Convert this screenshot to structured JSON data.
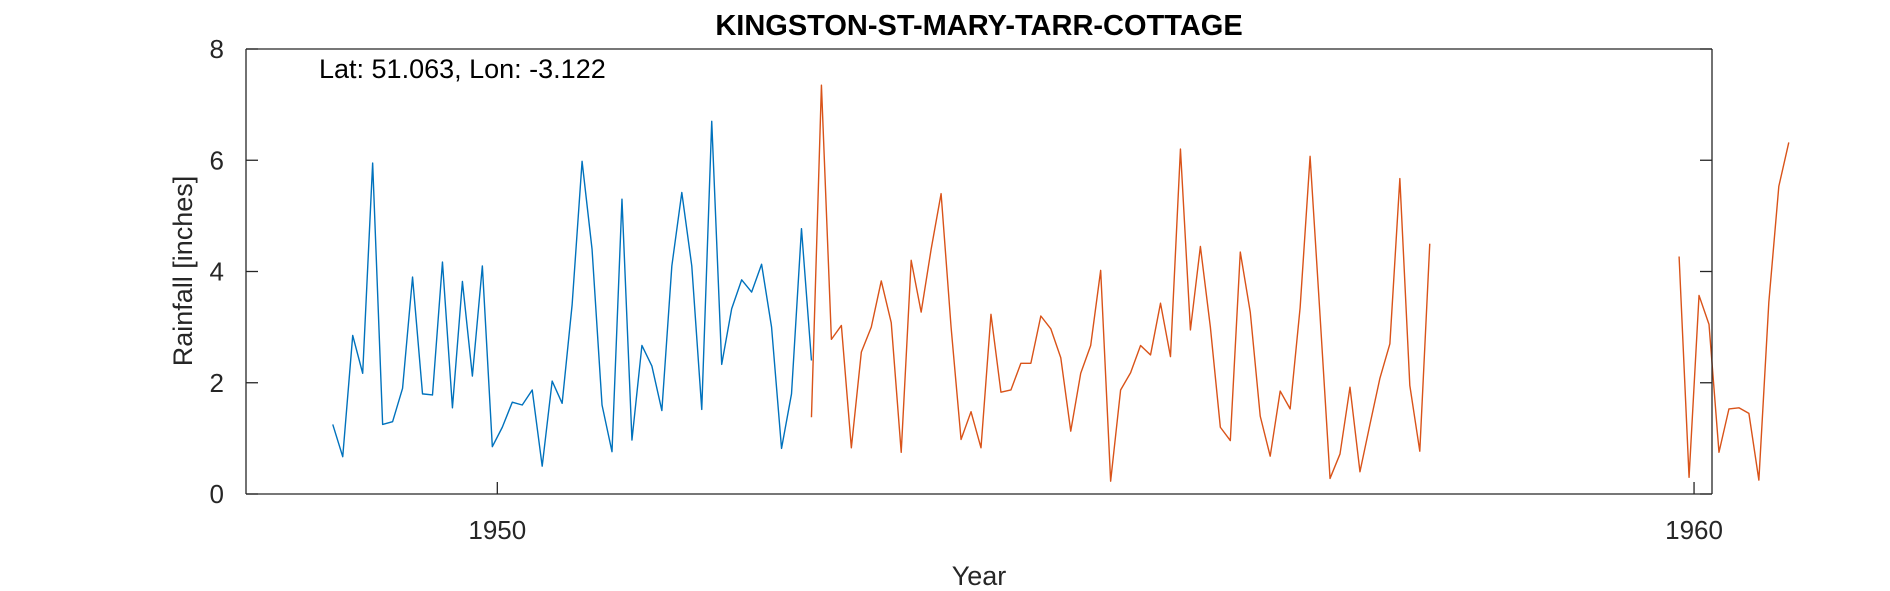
{
  "chart_data": {
    "type": "line",
    "title": "KINGSTON-ST-MARY-TARR-COTTAGE",
    "annotation": "Lat: 51.063, Lon: -3.122",
    "xlabel": "Year",
    "ylabel": "Rainfall [inches]",
    "xlim": [
      1947.9,
      1960.15
    ],
    "ylim": [
      0,
      8
    ],
    "xticks": [
      1950,
      1960
    ],
    "xtick_labels": [
      "1950",
      "1960"
    ],
    "yticks": [
      0,
      2,
      4,
      6,
      8
    ],
    "ytick_labels": [
      "0",
      "2",
      "4",
      "6",
      "8"
    ],
    "grid": false,
    "series": [
      {
        "name": "series-blue",
        "color": "#0072BD",
        "start_year": 1948.625,
        "step": 0.083333,
        "values": [
          1.25,
          0.67,
          2.85,
          2.17,
          5.95,
          1.25,
          1.3,
          1.9,
          3.9,
          1.8,
          1.78,
          4.17,
          1.55,
          3.82,
          2.12,
          4.1,
          0.85,
          1.2,
          1.65,
          1.6,
          1.87,
          0.5,
          2.03,
          1.63,
          3.4,
          5.98,
          4.4,
          1.6,
          0.76,
          5.3,
          0.97,
          2.67,
          2.3,
          1.5,
          4.1,
          5.42,
          4.1,
          1.52,
          6.7,
          2.33,
          3.33,
          3.85,
          3.63,
          4.13,
          3.0,
          0.82,
          1.8,
          4.77,
          2.4
        ]
      },
      {
        "name": "series-orange",
        "color": "#D95319",
        "start_year": 1952.625,
        "step": 0.083333,
        "values": [
          1.38,
          7.35,
          2.78,
          3.03,
          0.83,
          2.55,
          3.0,
          3.83,
          3.08,
          0.75,
          4.2,
          3.27,
          4.4,
          5.4,
          3.0,
          0.98,
          1.48,
          0.83,
          3.23,
          1.83,
          1.87,
          2.35,
          2.35,
          3.2,
          2.97,
          2.45,
          1.13,
          2.17,
          2.67,
          4.02,
          0.23,
          1.87,
          2.18,
          2.67,
          2.5,
          3.43,
          2.47,
          6.2,
          2.95,
          4.45,
          3.0,
          1.2,
          0.96,
          4.35,
          3.27,
          1.4,
          0.68,
          1.85,
          1.53,
          3.35,
          6.07,
          3.2,
          0.28,
          0.72,
          1.92,
          0.4,
          1.25,
          2.08,
          2.7,
          5.67,
          1.95,
          0.77,
          4.5,
          null,
          null,
          null,
          null,
          null,
          null,
          null,
          null,
          null,
          null,
          null,
          null,
          null,
          null,
          null,
          null,
          null,
          null,
          null,
          null,
          null,
          null,
          null,
          null,
          4.27,
          0.3,
          3.57,
          3.05,
          0.75,
          1.53,
          1.55,
          1.45,
          0.25,
          3.45,
          5.53,
          6.32
        ]
      }
    ]
  }
}
